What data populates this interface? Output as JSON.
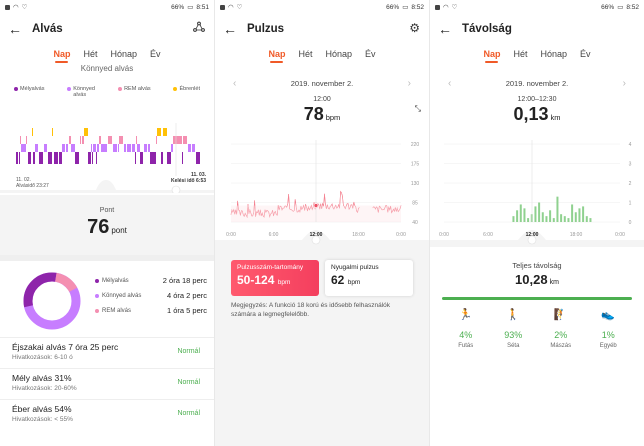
{
  "status": {
    "left_icons": [
      "sim-icon",
      "wifi-icon",
      "heart-icon"
    ],
    "battery": [
      "66%",
      "66%",
      "66%"
    ],
    "time": [
      "8:51",
      "8:52",
      "8:52"
    ]
  },
  "tabs": [
    "Nap",
    "Hét",
    "Hónap",
    "Év"
  ],
  "sleep": {
    "title": "Alvás",
    "cut_text": "Könnyed alvás",
    "legend": [
      {
        "label": "Mélyalvás",
        "color": "#8e24aa"
      },
      {
        "label": "Könnyed alvás",
        "color": "#c77dff"
      },
      {
        "label": "REM alvás",
        "color": "#f48fb1"
      },
      {
        "label": "Ébrenlét",
        "color": "#ffc107"
      }
    ],
    "start_date": "11. 02.",
    "start_label": "Alvásidő 23:27",
    "end_date": "11. 03.",
    "end_label": "Kelési idő 6:53",
    "score_label": "Pont",
    "score_value": "76",
    "score_unit": "pont",
    "breakdown": [
      {
        "label": "Mélyalvás",
        "value": "2 óra 18 perc",
        "color": "#8e24aa"
      },
      {
        "label": "Könnyed alvás",
        "value": "4 óra 2 perc",
        "color": "#c77dff"
      },
      {
        "label": "REM alvás",
        "value": "1 óra 5 perc",
        "color": "#f48fb1"
      }
    ],
    "metrics": [
      {
        "title": "Éjszakai alvás  7 óra 25 perc",
        "ref": "Hivatkozások: 6-10 ó",
        "status": "Normál"
      },
      {
        "title": "Mély alvás  31%",
        "ref": "Hivatkozások: 20-60%",
        "status": "Normál"
      },
      {
        "title": "Éber alvás  54%",
        "ref": "Hivatkozások: < 55%",
        "status": "Normál"
      }
    ]
  },
  "pulse": {
    "title": "Pulzus",
    "date": "2019. november 2.",
    "time": "12:00",
    "value": "78",
    "unit": "bpm",
    "y_ticks": [
      "220",
      "175",
      "130",
      "85",
      "40"
    ],
    "x_ticks": [
      "0:00",
      "6:00",
      "12:00",
      "18:00",
      "0:00"
    ],
    "range_label": "Pulzusszám-tartomány",
    "range_value": "50-124",
    "range_unit": "bpm",
    "rest_label": "Nyugalmi pulzus",
    "rest_value": "62",
    "rest_unit": "bpm",
    "note": "Megjegyzés: A funkció 18 korú és idősebb felhasználók számára a legmegfelelőbb."
  },
  "distance": {
    "title": "Távolság",
    "date": "2019. november 2.",
    "time": "12:00–12:30",
    "value": "0,13",
    "unit": "km",
    "y_ticks": [
      "4",
      "3",
      "2",
      "1",
      "0"
    ],
    "x_ticks": [
      "0:00",
      "6:00",
      "12:00",
      "18:00",
      "0:00"
    ],
    "total_label": "Teljes távolság",
    "total_value": "10,28",
    "total_unit": "km",
    "activities": [
      {
        "icon": "running-icon",
        "glyph": "🏃",
        "percent": "4%",
        "label": "Futás"
      },
      {
        "icon": "walking-icon",
        "glyph": "🚶",
        "percent": "93%",
        "label": "Séta"
      },
      {
        "icon": "climbing-icon",
        "glyph": "🧗",
        "percent": "2%",
        "label": "Mászás"
      },
      {
        "icon": "shoe-icon",
        "glyph": "👟",
        "percent": "1%",
        "label": "Egyéb"
      }
    ]
  }
}
